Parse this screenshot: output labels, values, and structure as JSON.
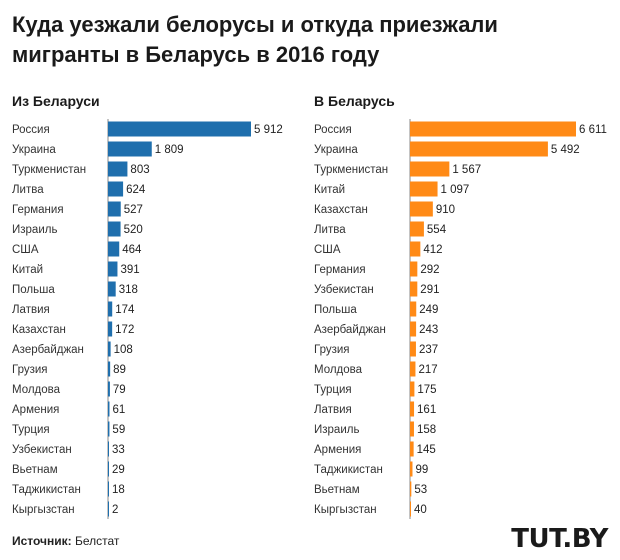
{
  "title": "Куда уезжали белорусы и откуда приезжали мигранты в Беларусь в 2016 году",
  "source": {
    "label": "Источник:",
    "value": "Белстат"
  },
  "logo": "TUT.BY",
  "colors": {
    "left_bar": "#1f6fad",
    "right_bar": "#ff8a16",
    "axis": "#888888"
  },
  "chart_data": [
    {
      "type": "bar",
      "orientation": "horizontal",
      "title": "Из Беларуси",
      "categories": [
        "Россия",
        "Украина",
        "Туркменистан",
        "Литва",
        "Германия",
        "Израиль",
        "США",
        "Китай",
        "Польша",
        "Латвия",
        "Казахстан",
        "Азербайджан",
        "Грузия",
        "Молдова",
        "Армения",
        "Турция",
        "Узбекистан",
        "Вьетнам",
        "Таджикистан",
        "Кыргызстан"
      ],
      "values": [
        5912,
        1809,
        803,
        624,
        527,
        520,
        464,
        391,
        318,
        174,
        172,
        108,
        89,
        79,
        61,
        59,
        33,
        29,
        18,
        2
      ],
      "value_labels": [
        "5 912",
        "1 809",
        "803",
        "624",
        "527",
        "520",
        "464",
        "391",
        "318",
        "174",
        "172",
        "108",
        "89",
        "79",
        "61",
        "59",
        "33",
        "29",
        "18",
        "2"
      ],
      "xlim": [
        0,
        5912
      ]
    },
    {
      "type": "bar",
      "orientation": "horizontal",
      "title": "В Беларусь",
      "categories": [
        "Россия",
        "Украина",
        "Туркменистан",
        "Китай",
        "Казахстан",
        "Литва",
        "США",
        "Германия",
        "Узбекистан",
        "Польша",
        "Азербайджан",
        "Грузия",
        "Молдова",
        "Турция",
        "Латвия",
        "Израиль",
        "Армения",
        "Таджикистан",
        "Вьетнам",
        "Кыргызстан"
      ],
      "values": [
        6611,
        5492,
        1567,
        1097,
        910,
        554,
        412,
        292,
        291,
        249,
        243,
        237,
        217,
        175,
        161,
        158,
        145,
        99,
        53,
        40
      ],
      "value_labels": [
        "6 611",
        "5 492",
        "1 567",
        "1 097",
        "910",
        "554",
        "412",
        "292",
        "291",
        "249",
        "243",
        "237",
        "217",
        "175",
        "161",
        "158",
        "145",
        "99",
        "53",
        "40"
      ],
      "xlim": [
        0,
        6611
      ]
    }
  ]
}
